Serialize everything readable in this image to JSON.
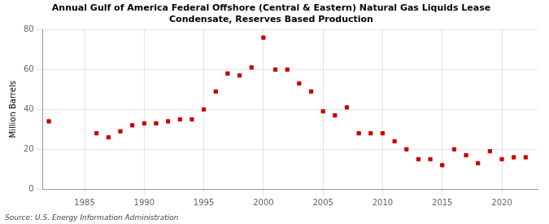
{
  "chart_data": {
    "type": "scatter",
    "title": "Annual Gulf of America Federal Offshore (Central & Eastern) Natural Gas Liquids Lease\nCondensate, Reserves Based Production",
    "ylabel": "Million Barrels",
    "source": "Source: U.S. Energy Information Administration",
    "x": [
      1982,
      1986,
      1987,
      1988,
      1989,
      1990,
      1991,
      1992,
      1993,
      1994,
      1995,
      1996,
      1997,
      1998,
      1999,
      2000,
      2001,
      2002,
      2003,
      2004,
      2005,
      2006,
      2007,
      2008,
      2009,
      2010,
      2011,
      2012,
      2013,
      2014,
      2015,
      2016,
      2017,
      2018,
      2019,
      2020,
      2021,
      2022
    ],
    "values": [
      34,
      28,
      26,
      29,
      32,
      33,
      33,
      34,
      35,
      35,
      40,
      49,
      58,
      57,
      61,
      76,
      60,
      60,
      53,
      49,
      39,
      37,
      41,
      28,
      28,
      28,
      24,
      20,
      15,
      15,
      12,
      20,
      17,
      13,
      19,
      15,
      16,
      16
    ],
    "color": "#cc0000",
    "marker": "square",
    "xlim": [
      1981.5,
      2023
    ],
    "xticks": [
      1985,
      1990,
      1995,
      2000,
      2005,
      2010,
      2015,
      2020
    ],
    "ylim": [
      0,
      80
    ],
    "yticks": [
      0,
      20,
      40,
      60,
      80
    ],
    "grid": true
  }
}
